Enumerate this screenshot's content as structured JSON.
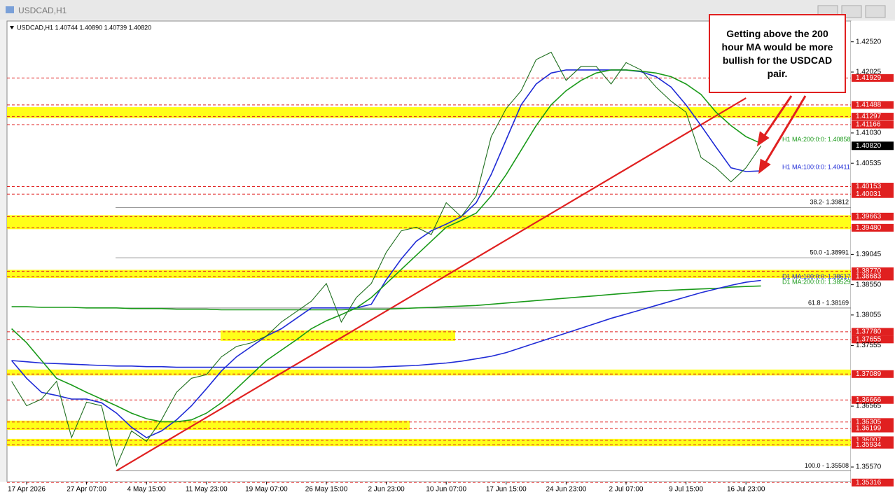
{
  "window_title": "USDCAD,H1",
  "chart_data": {
    "type": "line",
    "title": "USDCAD,H1  1.40744 1.40890 1.40739 1.40820",
    "categories": [
      null,
      "17 Apr 2026",
      null,
      null,
      null,
      "27 Apr 07:00",
      null,
      null,
      null,
      "4 May 15:00",
      null,
      null,
      null,
      "11 May 23:00",
      null,
      null,
      null,
      "19 May 07:00",
      null,
      null,
      null,
      "26 May 15:00",
      null,
      null,
      null,
      "2 Jun 23:00",
      null,
      null,
      null,
      "10 Jun 07:00",
      null,
      null,
      null,
      "17 Jun 15:00",
      null,
      null,
      null,
      "24 Jun 23:00",
      null,
      null,
      null,
      "2 Jul 07:00",
      null,
      null,
      null,
      "9 Jul 15:00",
      null,
      null,
      null,
      "16 Jul 23:00",
      null
    ],
    "series": [
      {
        "color": "#1f6f1f",
        "values": [
          1.3697,
          1.3657,
          1.3668,
          1.3697,
          1.3605,
          1.3663,
          1.3657,
          1.3559,
          1.3616,
          1.3599,
          1.3634,
          1.3679,
          1.3702,
          1.3708,
          1.3737,
          1.3754,
          1.376,
          1.3771,
          1.3794,
          1.3811,
          1.3828,
          1.3857,
          1.3794,
          1.3834,
          1.3857,
          1.3908,
          1.3943,
          1.3949,
          1.3937,
          1.3989,
          1.3966,
          1.4,
          1.4097,
          1.4143,
          1.4172,
          1.4223,
          1.4235,
          1.4189,
          1.4212,
          1.4212,
          1.4183,
          1.4218,
          1.4206,
          1.4178,
          1.4155,
          1.4137,
          1.4063,
          1.4046,
          1.4023,
          1.4046,
          1.4082
        ]
      },
      {
        "name": "H1 MA:200:0:0: 1.40858",
        "color": "#1a9a1a",
        "values": [
          1.3783,
          1.376,
          1.3731,
          1.3702,
          1.3691,
          1.3679,
          1.3668,
          1.3657,
          1.3645,
          1.3636,
          1.3631,
          1.3631,
          1.3634,
          1.3645,
          1.3662,
          1.3685,
          1.3708,
          1.3731,
          1.3748,
          1.3765,
          1.3783,
          1.3796,
          1.3806,
          1.3817,
          1.3834,
          1.3857,
          1.388,
          1.3903,
          1.3926,
          1.3949,
          1.396,
          1.3972,
          1.4,
          1.4035,
          1.4075,
          1.4115,
          1.4149,
          1.4172,
          1.4189,
          1.4201,
          1.4206,
          1.4206,
          1.4204,
          1.4201,
          1.4195,
          1.4183,
          1.4166,
          1.4137,
          1.4115,
          1.4097,
          1.4086
        ]
      },
      {
        "name": "H1 MA:100:0:0: 1.40411",
        "color": "#1f2bd6",
        "values": [
          1.3731,
          1.3702,
          1.3679,
          1.3674,
          1.3668,
          1.3668,
          1.3662,
          1.3645,
          1.3622,
          1.3605,
          1.3616,
          1.3634,
          1.3657,
          1.3685,
          1.3714,
          1.3737,
          1.3754,
          1.3771,
          1.3783,
          1.38,
          1.3817,
          1.3817,
          1.3817,
          1.3817,
          1.3823,
          1.3863,
          1.3897,
          1.3926,
          1.3943,
          1.3954,
          1.3966,
          1.3989,
          1.4035,
          1.4092,
          1.4149,
          1.4183,
          1.4201,
          1.4206,
          1.4206,
          1.4206,
          1.4206,
          1.4206,
          1.4203,
          1.4195,
          1.4178,
          1.4149,
          1.4115,
          1.408,
          1.4046,
          1.404,
          1.4041
        ]
      },
      {
        "name": "D1 MA:100:0:0: 1.38617",
        "color": "#1f2bd6",
        "values": [
          1.3731,
          1.3729,
          1.3727,
          1.3726,
          1.3725,
          1.3724,
          1.3723,
          1.3722,
          1.3722,
          1.3721,
          1.3721,
          1.372,
          1.372,
          1.372,
          1.372,
          1.372,
          1.372,
          1.372,
          1.372,
          1.372,
          1.372,
          1.372,
          1.372,
          1.372,
          1.372,
          1.3721,
          1.3722,
          1.3723,
          1.3725,
          1.3727,
          1.373,
          1.3734,
          1.3738,
          1.3744,
          1.3752,
          1.376,
          1.3768,
          1.3776,
          1.3784,
          1.3792,
          1.38,
          1.3807,
          1.3814,
          1.3821,
          1.3828,
          1.3835,
          1.3842,
          1.3848,
          1.3854,
          1.3859,
          1.3862
        ]
      },
      {
        "name": "D1 MA:200:0:0: 1.38529",
        "color": "#1a9a1a",
        "values": [
          1.3819,
          1.3819,
          1.3818,
          1.3818,
          1.3818,
          1.3817,
          1.3817,
          1.3817,
          1.3816,
          1.3816,
          1.3816,
          1.3815,
          1.3815,
          1.3815,
          1.3814,
          1.3814,
          1.3814,
          1.3814,
          1.3814,
          1.3814,
          1.3814,
          1.3814,
          1.3814,
          1.3815,
          1.3815,
          1.3815,
          1.3816,
          1.3817,
          1.3818,
          1.3819,
          1.382,
          1.3821,
          1.3823,
          1.3825,
          1.3827,
          1.3829,
          1.3831,
          1.3833,
          1.3835,
          1.3837,
          1.3839,
          1.3841,
          1.3843,
          1.3845,
          1.3846,
          1.3847,
          1.3848,
          1.3849,
          1.3851,
          1.3852,
          1.3853
        ]
      }
    ],
    "ylim": [
      1.3533,
      1.4286
    ],
    "yticks": [
      {
        "value": 1.4252,
        "label": "1.42520"
      },
      1.42025,
      {
        "value": 1.4103,
        "label": "1.41030"
      },
      1.40535,
      1.39045,
      {
        "value": 1.3855,
        "label": "1.38550"
      },
      1.38055,
      1.37555,
      1.36565,
      {
        "value": 1.3557,
        "label": "1.35570"
      }
    ],
    "levels": [
      1.41929,
      1.41488,
      1.41297,
      1.41166,
      1.40153,
      1.40031,
      1.39663,
      {
        "value": 1.3948,
        "label": "1.39480"
      },
      {
        "value": 1.3877,
        "label": "1.38770"
      },
      1.38683,
      {
        "value": 1.3778,
        "label": "1.37780"
      },
      1.37655,
      1.37089,
      1.36666,
      1.36305,
      1.36199,
      1.36007,
      1.35934,
      1.35316
    ],
    "current_price": {
      "value": 1.4082,
      "label": "1.40820"
    },
    "bands": [
      [
        1.41297,
        1.41429
      ],
      [
        1.3948,
        1.39663
      ],
      [
        1.38683,
        1.3877
      ],
      [
        1.37655,
        1.3778
      ],
      [
        1.37089,
        1.3714
      ],
      [
        1.36199,
        1.36305
      ],
      [
        1.35934,
        1.36007
      ]
    ],
    "fibonacci": [
      {
        "value": 1.39812,
        "label": "38.2- 1.39812"
      },
      {
        "value": 1.38991,
        "label": "50.0 -1.38991"
      },
      {
        "value": 1.38169,
        "label": "61.8 - 1.38169"
      },
      {
        "value": 1.35508,
        "label": "100.0 - 1.35508"
      }
    ],
    "trendline": {
      "x": [
        7,
        49
      ],
      "y": [
        1.3551,
        1.416
      ]
    },
    "annotation": "Getting above the 200 hour MA would be more bullish for the USDCAD pair.",
    "grid": false
  }
}
